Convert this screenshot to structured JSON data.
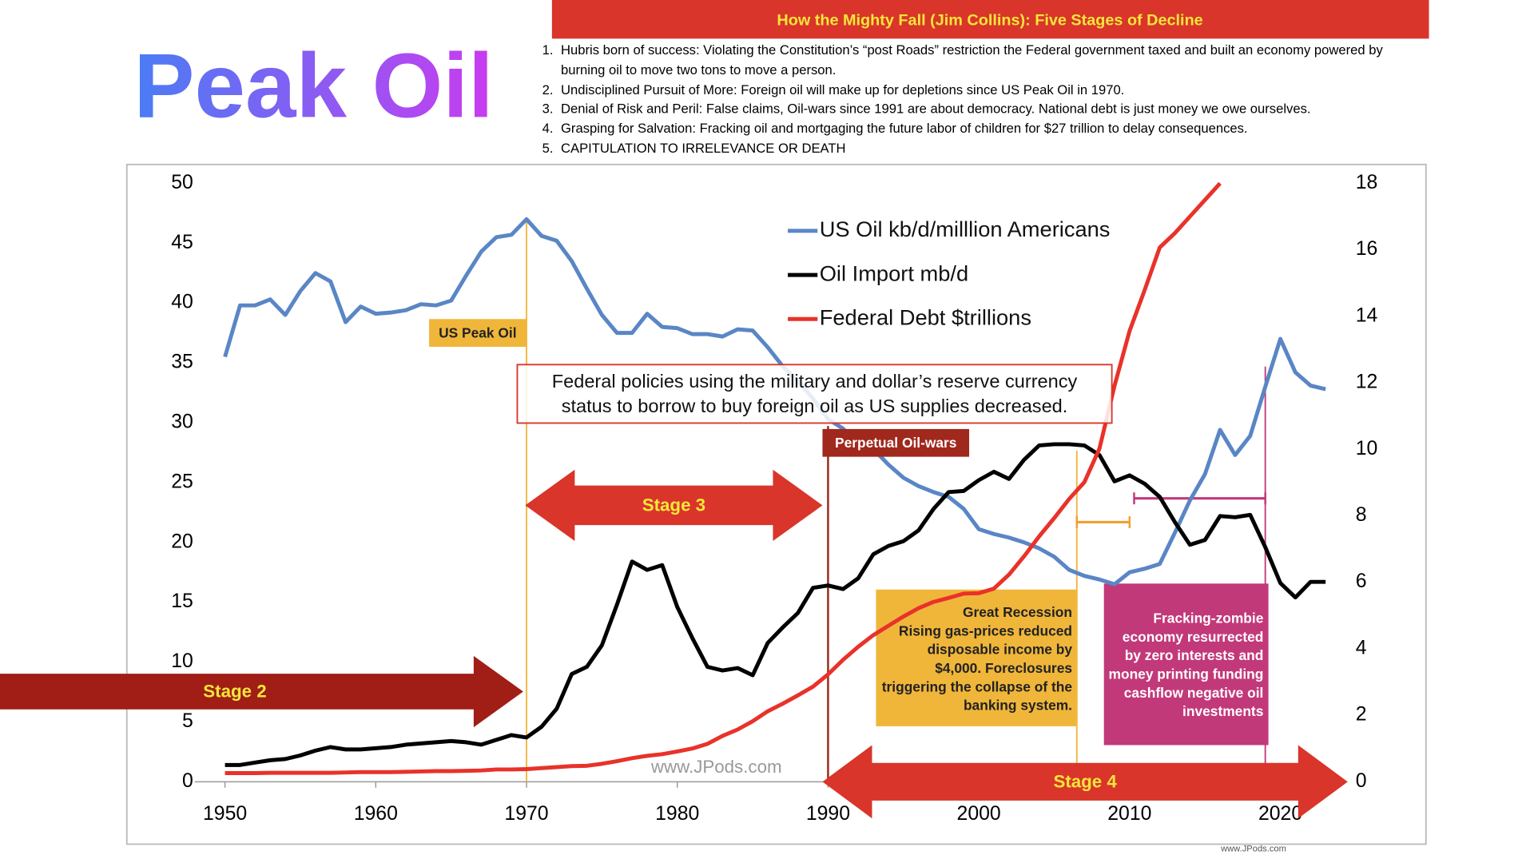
{
  "title": "Peak Oil",
  "header": {
    "title": "How the Mighty Fall (Jim Collins): Five Stages of Decline",
    "items": [
      "Hubris born of success: Violating the Constitution’s “post Roads” restriction the Federal government taxed and built an economy powered by burning oil to move two tons to move a person.",
      "Undisciplined Pursuit of More: Foreign oil will make up for depletions since US Peak Oil in 1970.",
      "Denial of Risk and Peril: False claims, Oil-wars since 1991 are about democracy. National debt is just money we owe ourselves.",
      "Grasping for Salvation: Fracking oil and mortgaging the future labor of children for $27 trillion to delay consequences.",
      "CAPITULATION TO IRRELEVANCE OR DEATH"
    ]
  },
  "chart_data": {
    "type": "line",
    "x": [
      1950,
      1951,
      1952,
      1953,
      1954,
      1955,
      1956,
      1957,
      1958,
      1959,
      1960,
      1961,
      1962,
      1963,
      1964,
      1965,
      1966,
      1967,
      1968,
      1969,
      1970,
      1971,
      1972,
      1973,
      1974,
      1975,
      1976,
      1977,
      1978,
      1979,
      1980,
      1981,
      1982,
      1983,
      1984,
      1985,
      1986,
      1987,
      1988,
      1989,
      1990,
      1991,
      1992,
      1993,
      1994,
      1995,
      1996,
      1997,
      1998,
      1999,
      2000,
      2001,
      2002,
      2003,
      2004,
      2005,
      2006,
      2007,
      2008,
      2009,
      2010,
      2011,
      2012,
      2013,
      2014,
      2015,
      2016,
      2017,
      2018,
      2019,
      2020,
      2021,
      2022,
      2023
    ],
    "series": [
      {
        "name": "US Oil kb/d/milllion Americans",
        "color": "#5a86c5",
        "values": [
          35.5,
          39.8,
          39.8,
          40.3,
          39,
          41,
          42.5,
          41.8,
          38.4,
          39.7,
          39.1,
          39.2,
          39.4,
          39.9,
          39.8,
          40.2,
          42.3,
          44.3,
          45.5,
          45.7,
          47,
          45.6,
          45.2,
          43.5,
          41.2,
          39,
          37.5,
          37.5,
          39.1,
          38,
          37.9,
          37.4,
          37.4,
          37.2,
          37.8,
          37.7,
          36.3,
          34.7,
          33.5,
          32,
          30.3,
          29.5,
          28.2,
          27.8,
          26.5,
          25.4,
          24.7,
          24.2,
          23.8,
          22.8,
          21.1,
          20.7,
          20.4,
          20,
          19.5,
          18.8,
          17.7,
          17.2,
          16.9,
          16.5,
          17.5,
          17.8,
          18.2,
          20.8,
          23.5,
          25.7,
          29.4,
          27.3,
          28.9,
          33,
          37,
          34.2,
          33.1,
          32.8
        ]
      },
      {
        "name": "Oil Import mb/d",
        "color": "#000000",
        "values": [
          1.4,
          1.4,
          1.6,
          1.8,
          1.9,
          2.2,
          2.6,
          2.9,
          2.7,
          2.7,
          2.8,
          2.9,
          3.1,
          3.2,
          3.3,
          3.4,
          3.3,
          3.1,
          3.5,
          3.9,
          3.7,
          4.6,
          6.1,
          9,
          9.6,
          11.4,
          14.8,
          18.4,
          17.7,
          18.1,
          14.6,
          12,
          9.6,
          9.3,
          9.5,
          8.9,
          11.6,
          12.9,
          14.1,
          16.2,
          16.4,
          16.1,
          17,
          19,
          19.7,
          20.1,
          21,
          22.8,
          24.2,
          24.3,
          25.2,
          25.9,
          25.3,
          26.9,
          28.1,
          28.2,
          28.2,
          28.1,
          27.3,
          25.1,
          25.6,
          24.9,
          23.8,
          21.7,
          19.8,
          20.2,
          22.2,
          22.1,
          22.3,
          19.6,
          16.6,
          15.4,
          16.7,
          16.7
        ]
      },
      {
        "name": "Federal Debt $trillions",
        "color": "#e8322a",
        "axis": "y2",
        "values": [
          0.26,
          0.26,
          0.26,
          0.27,
          0.27,
          0.27,
          0.27,
          0.27,
          0.28,
          0.29,
          0.29,
          0.29,
          0.3,
          0.31,
          0.32,
          0.32,
          0.33,
          0.34,
          0.37,
          0.37,
          0.38,
          0.41,
          0.44,
          0.47,
          0.48,
          0.54,
          0.62,
          0.71,
          0.78,
          0.83,
          0.91,
          1.0,
          1.14,
          1.38,
          1.57,
          1.82,
          2.12,
          2.35,
          2.6,
          2.86,
          3.23,
          3.67,
          4.06,
          4.41,
          4.69,
          4.97,
          5.22,
          5.41,
          5.53,
          5.66,
          5.67,
          5.81,
          6.23,
          6.78,
          7.38,
          7.93,
          8.51,
          9.01,
          10.02,
          11.91,
          13.56,
          14.79,
          16.07,
          16.5,
          17.0,
          17.5,
          18.0,
          null,
          null,
          null,
          null,
          null,
          null,
          null
        ]
      }
    ],
    "xlim": [
      1948,
      2023.5
    ],
    "xticks": [
      1950,
      1960,
      1970,
      1980,
      1990,
      2000,
      2010,
      2020
    ],
    "ylim": [
      0,
      50
    ],
    "yticks": [
      0,
      5,
      10,
      15,
      20,
      25,
      30,
      35,
      40,
      45,
      50
    ],
    "y2lim": [
      0,
      18
    ],
    "y2ticks": [
      0,
      2,
      4,
      6,
      8,
      10,
      12,
      14,
      16,
      18
    ],
    "grid": false,
    "legend": "top-right",
    "markers": [
      {
        "x": 1970,
        "color": "#f0b63a",
        "label": "US Peak Oil"
      },
      {
        "x": 1990,
        "color": "#9b2a1e",
        "label": "Perpetual Oil-wars"
      },
      {
        "x": 2006.5,
        "color": "#f0b63a"
      },
      {
        "x": 2019,
        "color": "#c2397a"
      }
    ],
    "spans": [
      {
        "from": 2006.5,
        "to": 2010,
        "color": "#f0a030"
      },
      {
        "from": 2010.3,
        "to": 2019,
        "color": "#c2397a"
      }
    ],
    "annotations": {
      "policy": [
        "Federal policies using the military and dollar’s reserve currency",
        "status to borrow to buy foreign oil as US supplies decreased."
      ],
      "stage2": "Stage 2",
      "stage3": "Stage 3",
      "stage4": "Stage 4",
      "great_recession": [
        "Great Recession",
        "Rising gas-prices reduced",
        "disposable income by",
        "$4,000. Foreclosures",
        "triggering the collapse of the",
        "banking system."
      ],
      "fracking": [
        "Fracking-zombie",
        "economy resurrected",
        "by zero interests and",
        "money printing funding",
        "cashflow negative oil",
        "investments"
      ],
      "watermark": "www.JPods.com",
      "credit": "www.JPods.com"
    }
  }
}
